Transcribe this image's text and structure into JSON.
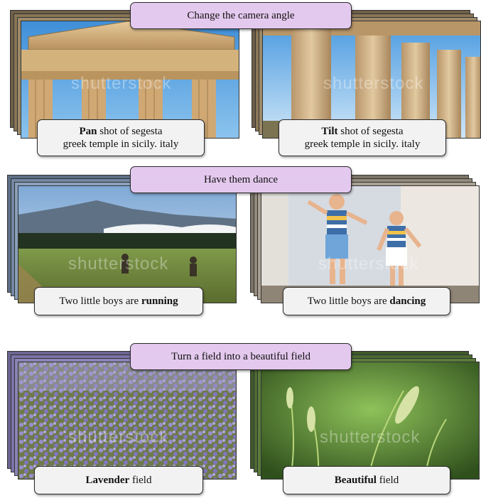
{
  "sections": [
    {
      "banner": "Change the camera angle",
      "left": {
        "caption_bold": "Pan",
        "caption_rest": " shot of segesta",
        "caption_line2": "greek temple in sicily. italy"
      },
      "right": {
        "caption_bold": "Tilt",
        "caption_rest": " shot of segesta",
        "caption_line2": "greek temple in sicily. italy"
      }
    },
    {
      "banner": "Have them dance",
      "left": {
        "caption_plain": "Two little boys are ",
        "caption_bold": "running"
      },
      "right": {
        "caption_plain": "Two little boys are ",
        "caption_bold": "dancing"
      }
    },
    {
      "banner": "Turn a field into a beautiful field",
      "left": {
        "caption_bold": "Lavender",
        "caption_rest": " field"
      },
      "right": {
        "caption_bold": "Beautiful",
        "caption_rest": " field"
      }
    }
  ],
  "watermark": "shutterstock"
}
